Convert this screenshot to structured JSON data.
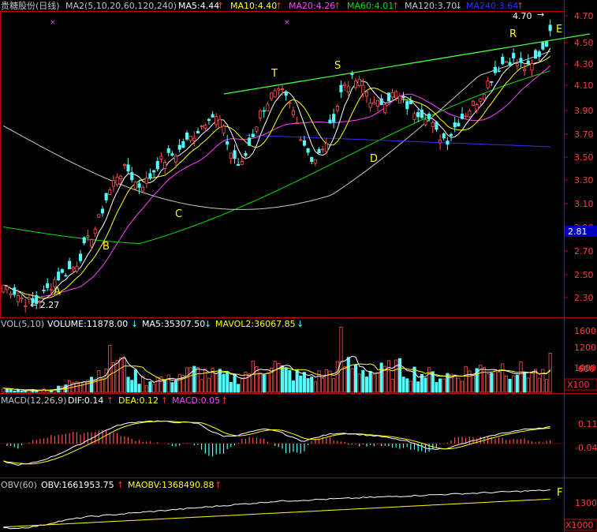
{
  "header": {
    "title": "贵糖股份(日线)",
    "ma_label": "MA2(5,10,20,60,120,240)",
    "ma5": "MA5:4.44",
    "ma10": "MA10:4.40",
    "ma20": "MA20:4.26",
    "ma60": "MA60:4.01",
    "ma120": "MA120:3.70",
    "ma240": "MA240:3.64",
    "arrow_up": "↑",
    "arrow_down": "↓"
  },
  "colors": {
    "up": "#ff5050",
    "down": "#54fcfc",
    "ma5": "#ffffff",
    "ma10": "#ffff00",
    "ma20": "#ff40ff",
    "ma60": "#00e000",
    "ma120": "#c8c8c8",
    "ma240": "#3030ff",
    "trendline": "#40ff40",
    "label": "#ffff00",
    "axis": "#c00000",
    "axis_text": "#ff3c3c",
    "grid": "#800000"
  },
  "annotations": {
    "A": "A",
    "B": "B",
    "C": "C",
    "D": "D",
    "E": "E",
    "F": "F",
    "R": "R",
    "S": "S",
    "T": "T",
    "low_price": "← 2.27",
    "high_price": "4.70"
  },
  "price_axis": {
    "ticks": [
      "4.70",
      "4.50",
      "4.30",
      "4.10",
      "3.90",
      "3.70",
      "3.50",
      "3.30",
      "3.10",
      "2.90",
      "2.70",
      "2.50",
      "2.30"
    ],
    "current": "2.81"
  },
  "volume": {
    "label": "VOL(5,10)",
    "volume": "VOLUME:11878.00",
    "ma5": "MA5:35307.50",
    "mavol2": "MAVOL2:36067.85",
    "ticks": [
      "1600",
      "1200",
      "1000",
      "600"
    ],
    "unit": "X100"
  },
  "macd": {
    "label": "MACD(12,26,9)",
    "dif": "DIF:0.14",
    "dea": "DEA:0.12",
    "macd": "MACD:0.05",
    "ticks": [
      "0.11",
      "-0.04"
    ]
  },
  "obv": {
    "label": "OBV(60)",
    "obv": "OBV:1661953.75",
    "maobv": "MAOBV:1368490.88",
    "ticks": [
      "1300"
    ],
    "unit": "X1000"
  },
  "chart_data": {
    "type": "candlestick",
    "price_range": [
      2.2,
      4.78
    ],
    "ma_end_values": {
      "MA5": 4.44,
      "MA10": 4.4,
      "MA20": 4.26,
      "MA60": 4.01,
      "MA120": 3.7,
      "MA240": 3.64
    },
    "price_path": [
      2.45,
      2.4,
      2.32,
      2.28,
      2.38,
      2.5,
      2.56,
      2.62,
      2.8,
      2.95,
      3.2,
      3.4,
      3.45,
      3.3,
      3.35,
      3.5,
      3.55,
      3.6,
      3.7,
      3.8,
      3.92,
      3.86,
      3.6,
      3.45,
      3.7,
      3.95,
      4.08,
      4.1,
      3.96,
      3.7,
      3.52,
      3.6,
      3.9,
      4.18,
      4.22,
      4.15,
      3.98,
      4.05,
      4.1,
      4.0,
      3.95,
      3.92,
      3.75,
      3.7,
      3.85,
      3.95,
      4.05,
      4.2,
      4.33,
      4.4,
      4.35,
      4.3,
      4.45,
      4.6
    ],
    "volume_path": [
      120,
      60,
      50,
      70,
      80,
      90,
      200,
      350,
      500,
      450,
      900,
      1000,
      600,
      400,
      300,
      400,
      350,
      500,
      550,
      600,
      500,
      450,
      400,
      420,
      650,
      700,
      850,
      600,
      500,
      450,
      400,
      500,
      620,
      800,
      700,
      650,
      550,
      600,
      700,
      600,
      550,
      500,
      450,
      480,
      500,
      600,
      650,
      700,
      750,
      680,
      600,
      580,
      500,
      300
    ],
    "macd_dif_path": [
      -0.15,
      -0.18,
      -0.17,
      -0.14,
      -0.1,
      -0.05,
      0.0,
      0.06,
      0.12,
      0.16,
      0.18,
      0.19,
      0.19,
      0.18,
      0.18,
      0.17,
      0.1,
      0.06,
      0.07,
      0.1,
      0.12,
      0.11,
      0.06,
      0.02,
      0.05,
      0.08,
      0.09,
      0.08,
      0.07,
      0.06,
      0.04,
      0.02,
      -0.02,
      -0.05,
      -0.04,
      -0.01,
      0.02,
      0.05,
      0.08,
      0.1,
      0.12,
      0.13,
      0.14
    ],
    "obv_path": [
      1100,
      1100,
      1110,
      1130,
      1160,
      1180,
      1200,
      1210,
      1220,
      1230,
      1240,
      1250,
      1260,
      1270,
      1280,
      1290,
      1300,
      1310,
      1320,
      1330,
      1340,
      1345,
      1350,
      1355,
      1360,
      1365,
      1370,
      1375,
      1380,
      1385,
      1390,
      1395,
      1400,
      1405,
      1410,
      1415,
      1420,
      1425,
      1430,
      1435,
      1440
    ]
  }
}
